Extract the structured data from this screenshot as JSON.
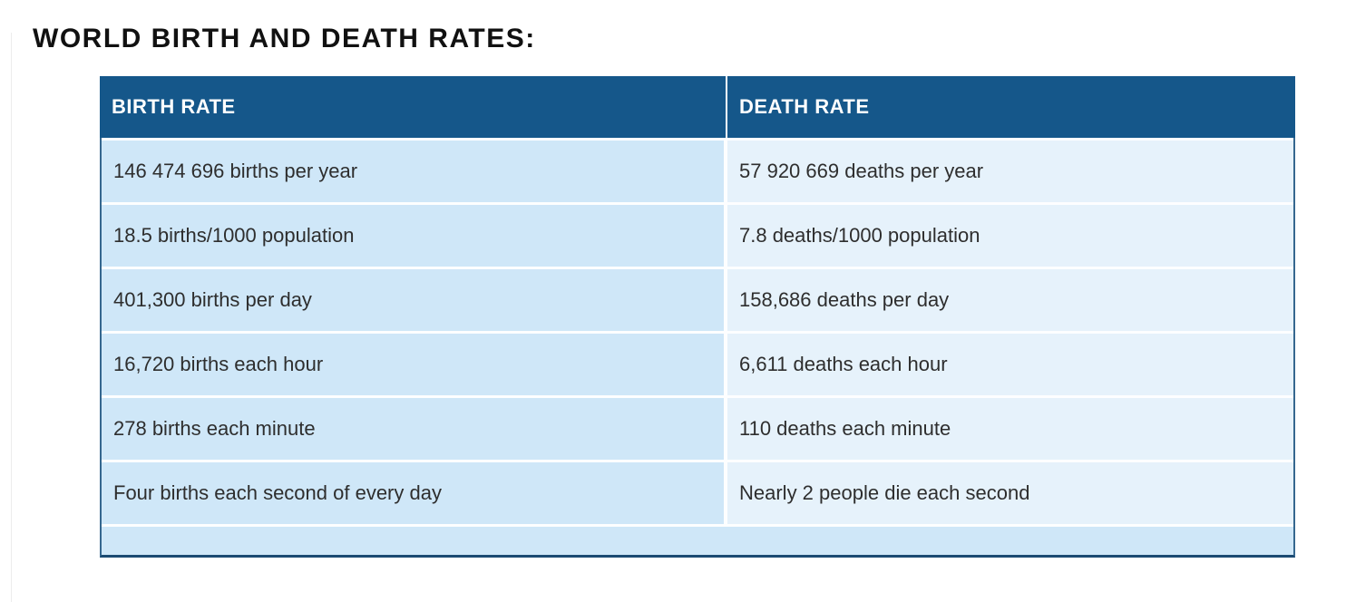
{
  "page": {
    "title": "WORLD BIRTH AND DEATH RATES:"
  },
  "table": {
    "headers": [
      "BIRTH RATE",
      "DEATH RATE"
    ],
    "rows": [
      {
        "birth": "146 474 696 births per year",
        "death": "57 920 669 deaths per year"
      },
      {
        "birth": "18.5 births/1000 population",
        "death": "7.8 deaths/1000 population"
      },
      {
        "birth": "401,300 births per day",
        "death": "158,686 deaths per day"
      },
      {
        "birth": "16,720 births each hour",
        "death": "6,611 deaths each hour"
      },
      {
        "birth": "278 births each minute",
        "death": "110 deaths each minute"
      },
      {
        "birth": "Four births each second of every day",
        "death": "Nearly 2 people die each second"
      }
    ]
  },
  "colors": {
    "header_bg": "#15578a",
    "birth_cell_bg": "#cfe7f8",
    "death_cell_bg": "#e6f2fb",
    "row_separator": "#fdfeff",
    "table_side_border": "#35678f",
    "table_bottom_border": "#1b4b72",
    "header_text": "#ffffff",
    "cell_text": "#2e2e2e",
    "title_text": "#111111"
  }
}
